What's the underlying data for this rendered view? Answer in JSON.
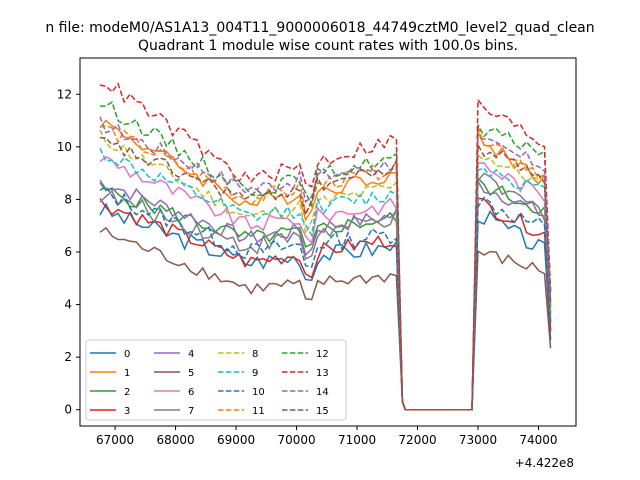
{
  "chart_data": {
    "type": "line",
    "suptitle": "n file: modeM0/AS1A13_004T11_9000006018_44749cztM0_level2_quad_clean",
    "title": "Quadrant 1 module wise count rates with 100.0s bins.",
    "xlabel": "",
    "ylabel": "",
    "x_offset_label": "+4.422e8",
    "xlim": [
      66420,
      74620
    ],
    "ylim": [
      -0.62,
      13.38
    ],
    "xticks": [
      67000,
      68000,
      69000,
      70000,
      71000,
      72000,
      73000,
      74000
    ],
    "xtick_labels": [
      "67000",
      "68000",
      "69000",
      "70000",
      "71000",
      "72000",
      "73000",
      "74000"
    ],
    "yticks": [
      0,
      2,
      4,
      6,
      8,
      10,
      12
    ],
    "ytick_labels": [
      "0",
      "2",
      "4",
      "6",
      "8",
      "10",
      "12"
    ],
    "grid": false,
    "legend_position": "lower-left",
    "legend_columns": 4,
    "gap_start": 71800,
    "gap_end": 72900,
    "series": [
      {
        "name": "0",
        "color": "#1f77b4",
        "dash": "solid",
        "start": 7.6,
        "mid": 5.6,
        "end": 6.2,
        "restart": 7.5,
        "tail": 5.9,
        "noise": 0.35
      },
      {
        "name": "1",
        "color": "#ff7f0e",
        "dash": "solid",
        "start": 11.0,
        "mid": 7.8,
        "end": 9.0,
        "restart": 10.3,
        "tail": 8.6,
        "noise": 0.3
      },
      {
        "name": "2",
        "color": "#2ca02c",
        "dash": "solid",
        "start": 8.4,
        "mid": 6.5,
        "end": 7.3,
        "restart": 8.6,
        "tail": 7.5,
        "noise": 0.3
      },
      {
        "name": "3",
        "color": "#d62728",
        "dash": "solid",
        "start": 7.9,
        "mid": 5.6,
        "end": 6.5,
        "restart": 7.9,
        "tail": 6.6,
        "noise": 0.3
      },
      {
        "name": "4",
        "color": "#9467bd",
        "dash": "solid",
        "start": 8.7,
        "mid": 6.5,
        "end": 7.4,
        "restart": 8.6,
        "tail": 7.3,
        "noise": 0.3
      },
      {
        "name": "5",
        "color": "#8c564b",
        "dash": "solid",
        "start": 6.8,
        "mid": 4.6,
        "end": 5.1,
        "restart": 6.0,
        "tail": 5.2,
        "noise": 0.25
      },
      {
        "name": "6",
        "color": "#e377c2",
        "dash": "solid",
        "start": 9.6,
        "mid": 7.0,
        "end": 7.8,
        "restart": 9.4,
        "tail": 8.0,
        "noise": 0.3
      },
      {
        "name": "7",
        "color": "#7f7f7f",
        "dash": "solid",
        "start": 8.2,
        "mid": 6.2,
        "end": 7.3,
        "restart": 8.8,
        "tail": 7.4,
        "noise": 0.35
      },
      {
        "name": "8",
        "color": "#bcbd22",
        "dash": "dashed",
        "start": 10.4,
        "mid": 7.3,
        "end": 8.5,
        "restart": 9.8,
        "tail": 8.4,
        "noise": 0.3
      },
      {
        "name": "9",
        "color": "#17becf",
        "dash": "dashed",
        "start": 9.8,
        "mid": 7.3,
        "end": 8.2,
        "restart": 9.3,
        "tail": 8.2,
        "noise": 0.3
      },
      {
        "name": "10",
        "color": "#1f77b4",
        "dash": "dashed",
        "start": 8.3,
        "mid": 6.0,
        "end": 6.7,
        "restart": 8.0,
        "tail": 6.8,
        "noise": 0.35
      },
      {
        "name": "11",
        "color": "#ff7f0e",
        "dash": "dashed",
        "start": 10.8,
        "mid": 8.0,
        "end": 9.2,
        "restart": 10.5,
        "tail": 8.8,
        "noise": 0.3
      },
      {
        "name": "12",
        "color": "#2ca02c",
        "dash": "dashed",
        "start": 11.7,
        "mid": 8.3,
        "end": 9.6,
        "restart": 10.6,
        "tail": 9.8,
        "noise": 0.3
      },
      {
        "name": "13",
        "color": "#d62728",
        "dash": "dashed",
        "start": 12.6,
        "mid": 8.7,
        "end": 10.3,
        "restart": 11.6,
        "tail": 10.0,
        "noise": 0.3
      },
      {
        "name": "14",
        "color": "#9467bd",
        "dash": "dashed",
        "start": 10.9,
        "mid": 8.4,
        "end": 9.4,
        "restart": 10.2,
        "tail": 9.2,
        "noise": 0.3
      },
      {
        "name": "15",
        "color": "#8c564b",
        "dash": "dashed",
        "start": 10.2,
        "mid": 8.0,
        "end": 9.2,
        "restart": 10.0,
        "tail": 8.8,
        "noise": 0.3
      }
    ]
  }
}
